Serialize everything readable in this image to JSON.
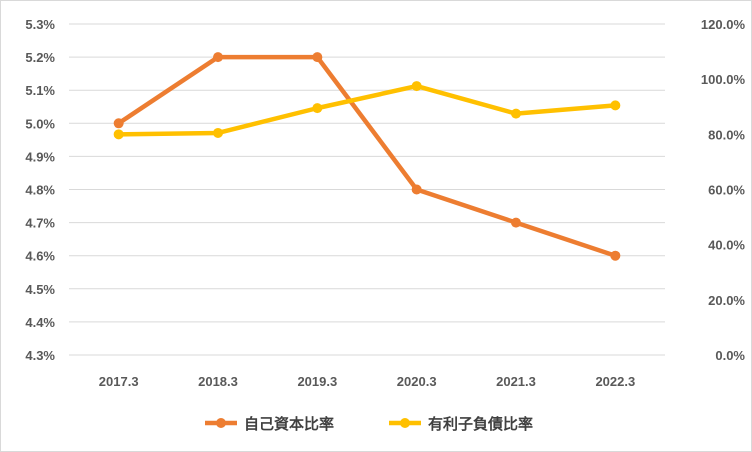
{
  "chart_data": {
    "type": "line",
    "title": "",
    "categories": [
      "2017.3",
      "2018.3",
      "2019.3",
      "2020.3",
      "2021.3",
      "2022.3"
    ],
    "series": [
      {
        "name": "自己資本比率",
        "axis": "left",
        "color": "#ED7D31",
        "values": [
          5.0,
          5.2,
          5.2,
          4.8,
          4.7,
          4.6
        ]
      },
      {
        "name": "有利子負債比率",
        "axis": "right",
        "color": "#FFC000",
        "values": [
          80.0,
          80.5,
          89.5,
          97.5,
          87.5,
          90.5
        ]
      }
    ],
    "y_left": {
      "min": 4.3,
      "max": 5.3,
      "step": 0.1,
      "tick_labels": [
        "4.3%",
        "4.4%",
        "4.5%",
        "4.6%",
        "4.7%",
        "4.8%",
        "4.9%",
        "5.0%",
        "5.1%",
        "5.2%",
        "5.3%"
      ]
    },
    "y_right": {
      "min": 0,
      "max": 120,
      "step": 20,
      "tick_labels": [
        "0.0%",
        "20.0%",
        "40.0%",
        "60.0%",
        "80.0%",
        "100.0%",
        "120.0%"
      ]
    },
    "grid": true,
    "legend_position": "bottom"
  }
}
